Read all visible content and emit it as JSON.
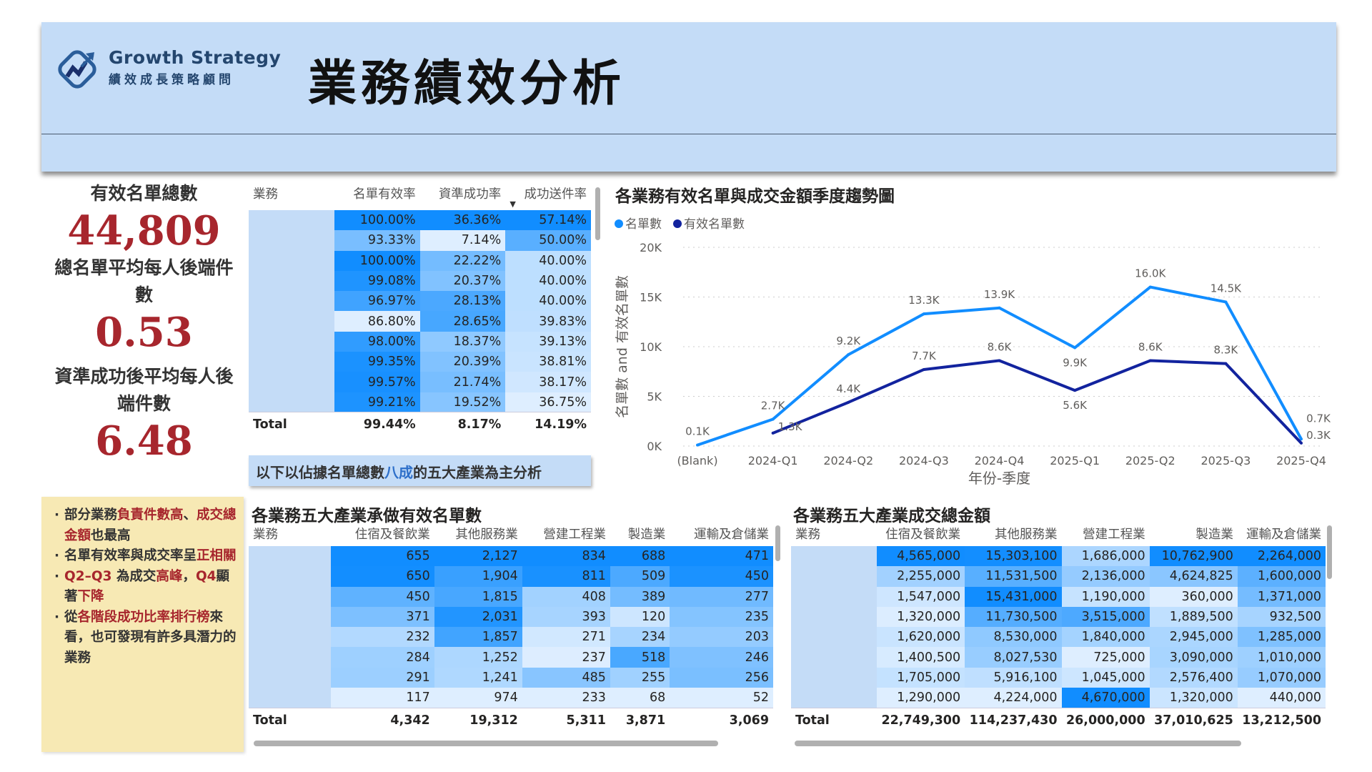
{
  "header": {
    "logo_en": "Growth Strategy",
    "logo_zh": "績效成長策略顧問",
    "title": "業務績效分析"
  },
  "kpis": [
    {
      "label": "有效名單總數",
      "value": "44,809"
    },
    {
      "label": "總名單平均每人後端件數",
      "value": "0.53"
    },
    {
      "label": "資準成功後平均每人後端件數",
      "value": "6.48"
    }
  ],
  "note": {
    "items": [
      [
        {
          "t": "部分業務"
        },
        {
          "t": "負責件數高",
          "r": true
        },
        {
          "t": "、"
        },
        {
          "t": "成交總金額",
          "r": true
        },
        {
          "t": "也最高"
        }
      ],
      [
        {
          "t": "名單有效率與成交率呈"
        },
        {
          "t": "正相關",
          "r": true
        }
      ],
      [
        {
          "t": "Q2–Q3",
          "r": true
        },
        {
          "t": " 為成交"
        },
        {
          "t": "高峰",
          "r": true
        },
        {
          "t": "，"
        },
        {
          "t": "Q4",
          "r": true
        },
        {
          "t": "顯著"
        },
        {
          "t": "下降",
          "r": true
        }
      ],
      [
        {
          "t": "從"
        },
        {
          "t": "各階段成功比率排行榜",
          "r": true
        },
        {
          "t": "來看，也可發現有許多具潛力的業務"
        }
      ]
    ]
  },
  "rate_table": {
    "columns": [
      "業務",
      "名單有效率",
      "資準成功率",
      "成功送件率"
    ],
    "sort_indicator": "▼",
    "rows": [
      [
        "",
        "100.00%",
        "36.36%",
        "57.14%"
      ],
      [
        "",
        "93.33%",
        "7.14%",
        "50.00%"
      ],
      [
        "",
        "100.00%",
        "22.22%",
        "40.00%"
      ],
      [
        "",
        "99.08%",
        "20.37%",
        "40.00%"
      ],
      [
        "",
        "96.97%",
        "28.13%",
        "40.00%"
      ],
      [
        "",
        "86.80%",
        "28.65%",
        "39.83%"
      ],
      [
        "",
        "98.00%",
        "18.37%",
        "39.13%"
      ],
      [
        "",
        "99.35%",
        "20.39%",
        "38.81%"
      ],
      [
        "",
        "99.57%",
        "21.74%",
        "38.17%"
      ],
      [
        "",
        "99.21%",
        "19.52%",
        "36.75%"
      ]
    ],
    "total": [
      "Total",
      "99.44%",
      "8.17%",
      "14.19%"
    ]
  },
  "callout": {
    "pre": "以下以佔據名單總數",
    "hl": "八成",
    "post": "的五大產業為主分析"
  },
  "chart_data": {
    "type": "line",
    "title": "各業務有效名單與成交金額季度趨勢圖",
    "xlabel": "年份-季度",
    "ylabel": "名單數 and 有效名單數",
    "categories": [
      "(Blank)",
      "2024-Q1",
      "2024-Q2",
      "2024-Q3",
      "2024-Q4",
      "2025-Q1",
      "2025-Q2",
      "2025-Q3",
      "2025-Q4"
    ],
    "ylim": [
      0,
      20000
    ],
    "yticks": [
      "0K",
      "5K",
      "10K",
      "15K",
      "20K"
    ],
    "grid": true,
    "legend": "top-left",
    "series": [
      {
        "name": "名單數",
        "color": "#118dff",
        "values": [
          100,
          2700,
          9200,
          13300,
          13900,
          9900,
          16000,
          14500,
          700
        ],
        "labels": [
          "0.1K",
          "2.7K",
          "9.2K",
          "13.3K",
          "13.9K",
          "9.9K",
          "16.0K",
          "14.5K",
          "0.7K"
        ]
      },
      {
        "name": "有效名單數",
        "color": "#12239e",
        "values": [
          null,
          1300,
          4400,
          7700,
          8600,
          5600,
          8600,
          8300,
          300
        ],
        "labels": [
          "",
          "1.3K",
          "4.4K",
          "7.7K",
          "8.6K",
          "5.6K",
          "8.6K",
          "8.3K",
          "0.3K"
        ]
      }
    ]
  },
  "count_table": {
    "title": "各業務五大產業承做有效名單數",
    "columns": [
      "業務",
      "住宿及餐飲業",
      "其他服務業",
      "營建工程業",
      "製造業",
      "運輸及倉儲業"
    ],
    "rows": [
      [
        "",
        "655",
        "2,127",
        "834",
        "688",
        "471"
      ],
      [
        "",
        "650",
        "1,904",
        "811",
        "509",
        "450"
      ],
      [
        "",
        "450",
        "1,815",
        "408",
        "389",
        "277"
      ],
      [
        "",
        "371",
        "2,031",
        "393",
        "120",
        "235"
      ],
      [
        "",
        "232",
        "1,857",
        "271",
        "234",
        "203"
      ],
      [
        "",
        "284",
        "1,252",
        "237",
        "518",
        "246"
      ],
      [
        "",
        "291",
        "1,241",
        "485",
        "255",
        "256"
      ],
      [
        "",
        "117",
        "974",
        "233",
        "68",
        "52"
      ]
    ],
    "total": [
      "Total",
      "4,342",
      "19,312",
      "5,311",
      "3,871",
      "3,069"
    ]
  },
  "amount_table": {
    "title": "各業務五大產業成交總金額",
    "columns": [
      "業務",
      "住宿及餐飲業",
      "其他服務業",
      "營建工程業",
      "製造業",
      "運輸及倉儲業"
    ],
    "rows": [
      [
        "",
        "4,565,000",
        "15,303,100",
        "1,686,000",
        "10,762,900",
        "2,264,000"
      ],
      [
        "",
        "2,255,000",
        "11,531,500",
        "2,136,000",
        "4,624,825",
        "1,600,000"
      ],
      [
        "",
        "1,547,000",
        "15,431,000",
        "1,190,000",
        "360,000",
        "1,371,000"
      ],
      [
        "",
        "1,320,000",
        "11,730,500",
        "3,515,000",
        "1,889,500",
        "932,500"
      ],
      [
        "",
        "1,620,000",
        "8,530,000",
        "1,840,000",
        "2,945,000",
        "1,285,000"
      ],
      [
        "",
        "1,400,500",
        "8,027,530",
        "725,000",
        "3,090,000",
        "1,010,000"
      ],
      [
        "",
        "1,705,000",
        "5,916,100",
        "1,045,000",
        "2,576,400",
        "1,070,000"
      ],
      [
        "",
        "1,290,000",
        "4,224,000",
        "4,670,000",
        "1,320,000",
        "440,000"
      ]
    ],
    "total": [
      "Total",
      "22,749,300",
      "114,237,430",
      "26,000,000",
      "37,010,625",
      "13,212,500"
    ]
  },
  "colors": {
    "header_bg": "#c4dcf7",
    "kpi_red": "#a7262d",
    "heat_max": "#118dff",
    "heat_min": "#deeeff",
    "note_bg": "#f7e9b4"
  }
}
